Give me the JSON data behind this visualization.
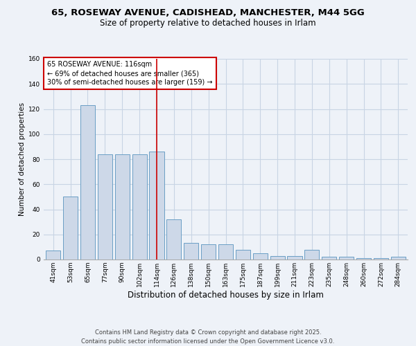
{
  "title1": "65, ROSEWAY AVENUE, CADISHEAD, MANCHESTER, M44 5GG",
  "title2": "Size of property relative to detached houses in Irlam",
  "xlabel": "Distribution of detached houses by size in Irlam",
  "ylabel": "Number of detached properties",
  "categories": [
    "41sqm",
    "53sqm",
    "65sqm",
    "77sqm",
    "90sqm",
    "102sqm",
    "114sqm",
    "126sqm",
    "138sqm",
    "150sqm",
    "163sqm",
    "175sqm",
    "187sqm",
    "199sqm",
    "211sqm",
    "223sqm",
    "235sqm",
    "248sqm",
    "260sqm",
    "272sqm",
    "284sqm"
  ],
  "values": [
    7,
    50,
    123,
    84,
    84,
    84,
    86,
    32,
    13,
    12,
    12,
    8,
    5,
    3,
    3,
    8,
    2,
    2,
    1,
    1,
    2
  ],
  "bar_color": "#cdd8e8",
  "bar_edge_color": "#6a9ec5",
  "highlight_index": 6,
  "highlight_line_color": "#cc0000",
  "annotation_text": "65 ROSEWAY AVENUE: 116sqm\n← 69% of detached houses are smaller (365)\n30% of semi-detached houses are larger (159) →",
  "annotation_box_color": "#ffffff",
  "annotation_box_edge_color": "#cc0000",
  "ylim": [
    0,
    160
  ],
  "yticks": [
    0,
    20,
    40,
    60,
    80,
    100,
    120,
    140,
    160
  ],
  "footer_text": "Contains HM Land Registry data © Crown copyright and database right 2025.\nContains public sector information licensed under the Open Government Licence v3.0.",
  "bg_color": "#eef2f8",
  "grid_color": "#c8d4e4",
  "title1_fontsize": 9.5,
  "title2_fontsize": 8.5,
  "xlabel_fontsize": 8.5,
  "ylabel_fontsize": 7.5,
  "tick_fontsize": 6.5,
  "annotation_fontsize": 7,
  "footer_fontsize": 6
}
